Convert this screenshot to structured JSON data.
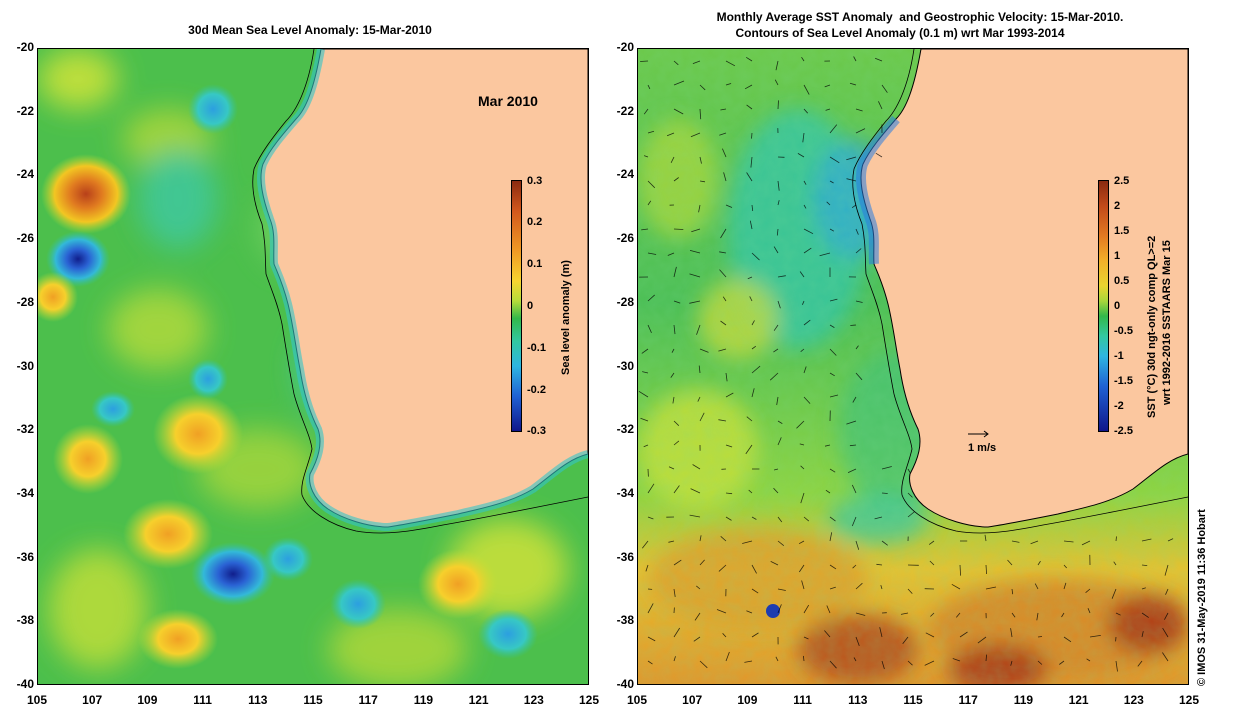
{
  "left_panel": {
    "title": "30d Mean Sea Level Anomaly: 15-Mar-2010",
    "month_label": "Mar 2010",
    "colorbar_label": "Sea level anomaly (m)",
    "colorbar_ticks": [
      "0.3",
      "0.2",
      "0.1",
      "0",
      "-0.1",
      "-0.2",
      "-0.3"
    ]
  },
  "right_panel": {
    "title_line1": "Monthly Average SST Anomaly  and Geostrophic Velocity: 15-Mar-2010.",
    "title_line2": "Contours of Sea Level Anomaly (0.1 m) wrt Mar 1993-2014",
    "colorbar_label_line1": "SST (°C) 30d ngt-only comp QL>=2",
    "colorbar_label_line2": "wrt 1992-2016 SSTAARS Mar 15",
    "colorbar_ticks": [
      "2.5",
      "2",
      "1.5",
      "1",
      "0.5",
      "0",
      "-0.5",
      "-1",
      "-1.5",
      "-2",
      "-2.5"
    ],
    "velocity_scale_label": "1 m/s"
  },
  "axes": {
    "y_ticks": [
      "-20",
      "-22",
      "-24",
      "-26",
      "-28",
      "-30",
      "-32",
      "-34",
      "-36",
      "-38",
      "-40"
    ],
    "x_ticks": [
      "105",
      "107",
      "109",
      "111",
      "113",
      "115",
      "117",
      "119",
      "121",
      "123",
      "125"
    ]
  },
  "credit": "© IMOS 31-May-2019 11:36 Hobart",
  "colors": {
    "land": "#fbc79f",
    "coast": "#000000"
  }
}
